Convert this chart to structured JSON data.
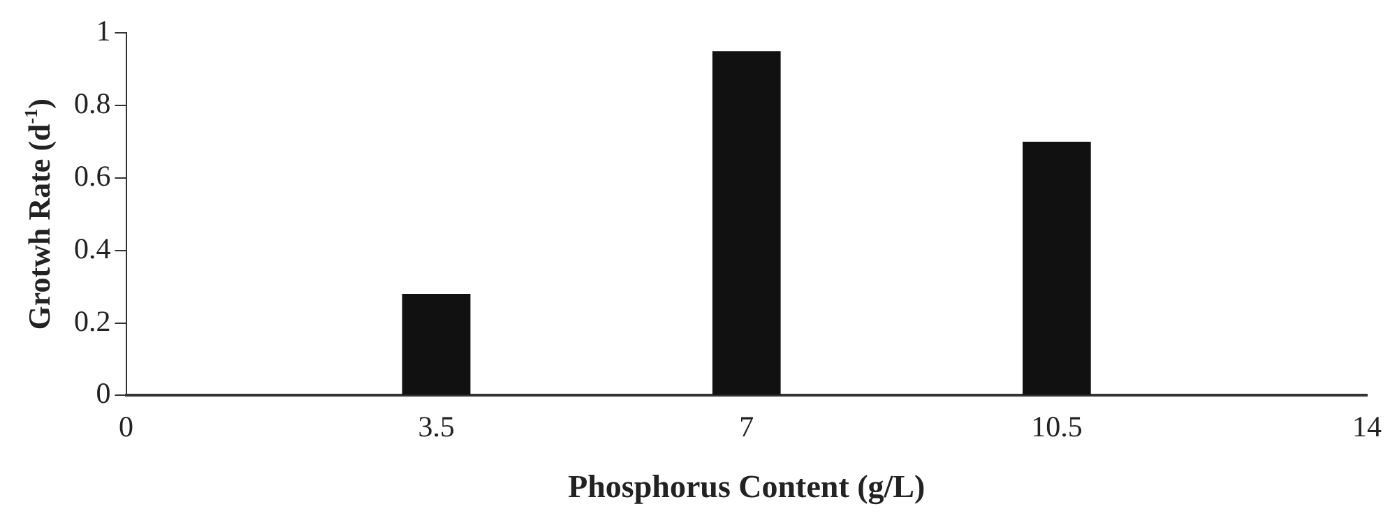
{
  "chart_data": {
    "type": "bar",
    "xlabel": "Phosphorus Content (g/L)",
    "ylabel": "Grotwh Rate (d$^{-1}$)",
    "categories": [
      "0",
      "3.5",
      "7",
      "10.5",
      "14"
    ],
    "values": [
      null,
      0.28,
      0.95,
      0.7,
      null
    ],
    "color": "#111111",
    "ylim": [
      0,
      1
    ],
    "yticks": [
      0,
      0.2,
      0.4,
      0.6,
      0.8,
      1
    ],
    "grid": false,
    "legend": false
  }
}
